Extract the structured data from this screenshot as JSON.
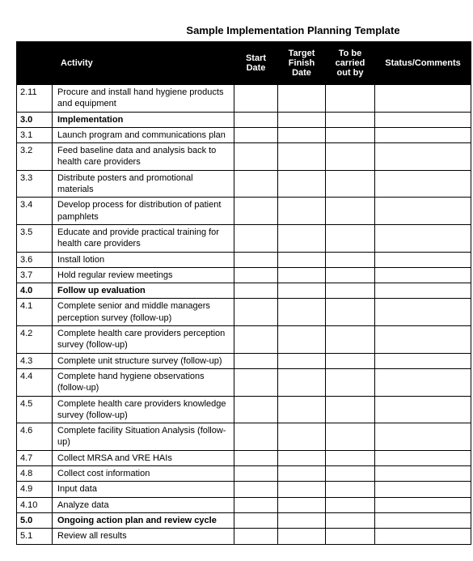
{
  "title": "Sample Implementation Planning Template",
  "columns": [
    "",
    "Activity",
    "Start Date",
    "Target Finish Date",
    "To be carried out by",
    "Status/Comments"
  ],
  "rows": [
    {
      "id": "2.11",
      "activity": "Procure and install hand hygiene products and equipment",
      "bold": false
    },
    {
      "id": "3.0",
      "activity": "Implementation",
      "bold": true
    },
    {
      "id": "3.1",
      "activity": "Launch program and communications plan",
      "bold": false
    },
    {
      "id": "3.2",
      "activity": "Feed baseline data and analysis back to health care providers",
      "bold": false
    },
    {
      "id": "3.3",
      "activity": "Distribute posters and promotional materials",
      "bold": false
    },
    {
      "id": "3.4",
      "activity": "Develop process for distribution of patient pamphlets",
      "bold": false
    },
    {
      "id": "3.5",
      "activity": "Educate and provide practical training for health care providers",
      "bold": false
    },
    {
      "id": "3.6",
      "activity": "Install lotion",
      "bold": false
    },
    {
      "id": "3.7",
      "activity": "Hold regular review meetings",
      "bold": false
    },
    {
      "id": "4.0",
      "activity": "Follow up evaluation",
      "bold": true
    },
    {
      "id": "4.1",
      "activity": "Complete senior and middle managers perception survey (follow-up)",
      "bold": false
    },
    {
      "id": "4.2",
      "activity": "Complete health care providers perception survey (follow-up)",
      "bold": false
    },
    {
      "id": "4.3",
      "activity": "Complete unit structure survey (follow-up)",
      "bold": false
    },
    {
      "id": "4.4",
      "activity": "Complete hand hygiene observations (follow-up)",
      "bold": false
    },
    {
      "id": "4.5",
      "activity": "Complete health care providers knowledge survey (follow-up)",
      "bold": false
    },
    {
      "id": "4.6",
      "activity": "Complete facility Situation Analysis (follow-up)",
      "bold": false
    },
    {
      "id": "4.7",
      "activity": "Collect MRSA and VRE HAIs",
      "bold": false
    },
    {
      "id": "4.8",
      "activity": "Collect cost information",
      "bold": false
    },
    {
      "id": "4.9",
      "activity": "Input data",
      "bold": false
    },
    {
      "id": "4.10",
      "activity": "Analyze data",
      "bold": false
    },
    {
      "id": "5.0",
      "activity": "Ongoing action plan and review cycle",
      "bold": true
    },
    {
      "id": "5.1",
      "activity": "Review all results",
      "bold": false
    }
  ]
}
